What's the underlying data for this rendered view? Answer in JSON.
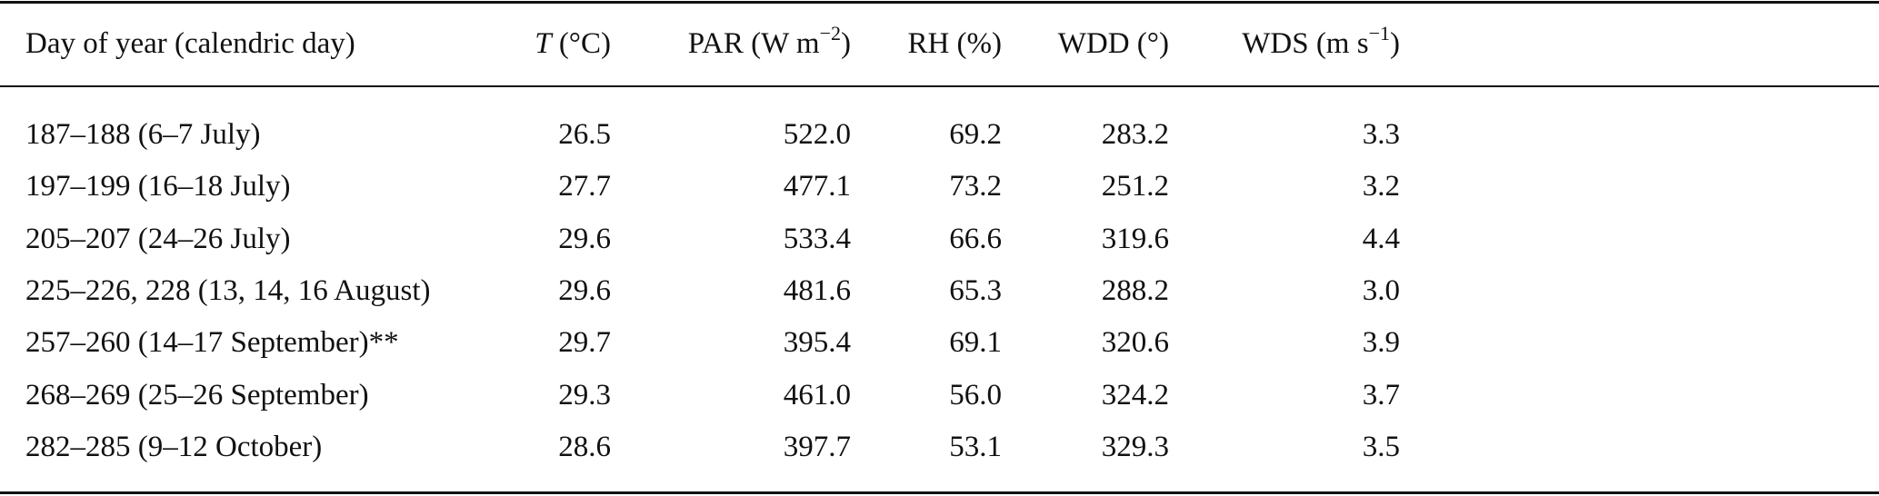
{
  "table": {
    "headers": {
      "day": "Day of year (calendric day)",
      "t_sym": "T",
      "t_unit": " (°C)",
      "par": "PAR (W m",
      "par_exp": "−2",
      "rh": "RH (%)",
      "wdd": "WDD (°)",
      "wds": "WDS (m s",
      "wds_exp": "−1",
      "close": ")"
    },
    "rows": [
      {
        "day": "187–188 (6–7 July)",
        "t": "26.5",
        "par": "522.0",
        "rh": "69.2",
        "wdd": "283.2",
        "wds": "3.3"
      },
      {
        "day": "197–199 (16–18 July)",
        "t": "27.7",
        "par": "477.1",
        "rh": "73.2",
        "wdd": "251.2",
        "wds": "3.2"
      },
      {
        "day": "205–207 (24–26 July)",
        "t": "29.6",
        "par": "533.4",
        "rh": "66.6",
        "wdd": "319.6",
        "wds": "4.4"
      },
      {
        "day": "225–226, 228 (13, 14, 16 August)",
        "t": "29.6",
        "par": "481.6",
        "rh": "65.3",
        "wdd": "288.2",
        "wds": "3.0"
      },
      {
        "day": "257–260 (14–17 September)**",
        "t": "29.7",
        "par": "395.4",
        "rh": "69.1",
        "wdd": "320.6",
        "wds": "3.9"
      },
      {
        "day": "268–269 (25–26 September)",
        "t": "29.3",
        "par": "461.0",
        "rh": "56.0",
        "wdd": "324.2",
        "wds": "3.7"
      },
      {
        "day": "282–285 (9–12 October)",
        "t": "28.6",
        "par": "397.7",
        "rh": "53.1",
        "wdd": "329.3",
        "wds": "3.5"
      }
    ]
  }
}
